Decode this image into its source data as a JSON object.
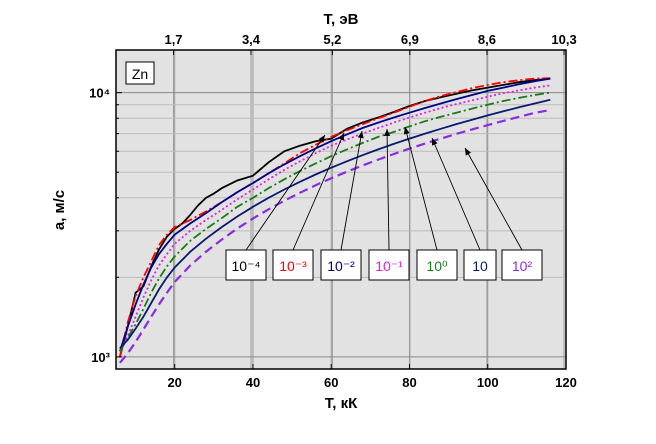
{
  "chart_data": {
    "type": "line",
    "xlabel": "T, кК",
    "ylabel": "a, м/с",
    "x2label": "T, эВ",
    "xlim": [
      5,
      120
    ],
    "ylim": [
      900,
      14500
    ],
    "yscale": "log",
    "grid": true,
    "x_ticks": [
      20,
      40,
      60,
      80,
      100,
      120
    ],
    "x_tick_labels": [
      "20",
      "40",
      "60",
      "80",
      "100",
      "120"
    ],
    "x2_ticks": [
      19.7,
      39.5,
      60.3,
      80.1,
      99.8,
      119.5
    ],
    "x2_tick_labels": [
      "1,7",
      "3,4",
      "5,2",
      "6,9",
      "8,6",
      "10,3"
    ],
    "y_ticks": [
      1000,
      10000
    ],
    "y_tick_labels": [
      "10³",
      "10⁴"
    ],
    "box_label": "Zn",
    "series": [
      {
        "name": "10⁻⁴",
        "color": "#000000",
        "dash": "solid",
        "x": [
          6,
          8,
          10,
          12,
          14,
          16,
          18,
          20,
          22,
          24,
          26,
          28,
          30,
          32,
          34,
          36,
          38,
          40,
          44,
          48,
          52,
          56,
          60,
          64,
          68,
          72,
          76,
          80,
          84,
          88,
          92,
          96,
          100,
          104,
          108,
          112,
          116
        ],
        "y": [
          1000,
          1300,
          1750,
          1850,
          2200,
          2550,
          2850,
          3050,
          3200,
          3450,
          3750,
          4000,
          4150,
          4350,
          4500,
          4650,
          4750,
          4850,
          5450,
          6000,
          6300,
          6550,
          6700,
          7300,
          7700,
          8050,
          8450,
          8900,
          9300,
          9600,
          9900,
          10200,
          10450,
          10700,
          10950,
          11150,
          11300
        ]
      },
      {
        "name": "10⁻³",
        "color": "#ff0000",
        "dash": "dashdot",
        "x": [
          6,
          8,
          10,
          12,
          14,
          16,
          18,
          20,
          24,
          28,
          32,
          36,
          40,
          44,
          48,
          52,
          56,
          60,
          64,
          68,
          72,
          76,
          80,
          84,
          88,
          92,
          96,
          100,
          104,
          108,
          112,
          116
        ],
        "y": [
          1000,
          1350,
          1700,
          2000,
          2300,
          2650,
          2900,
          3100,
          3300,
          3550,
          3850,
          4200,
          4550,
          4950,
          5400,
          5900,
          6350,
          6800,
          7200,
          7600,
          8000,
          8400,
          8850,
          9300,
          9700,
          10050,
          10400,
          10700,
          10950,
          11150,
          11300,
          11350
        ]
      },
      {
        "name": "10⁻²",
        "color": "#00008b",
        "dash": "solid",
        "x": [
          6,
          8,
          10,
          12,
          14,
          16,
          18,
          20,
          24,
          28,
          32,
          36,
          40,
          44,
          48,
          52,
          56,
          60,
          64,
          68,
          72,
          76,
          80,
          84,
          88,
          92,
          96,
          100,
          104,
          108,
          112,
          116
        ],
        "y": [
          1050,
          1300,
          1580,
          1880,
          2180,
          2450,
          2680,
          2900,
          3200,
          3500,
          3850,
          4200,
          4550,
          4950,
          5350,
          5750,
          6150,
          6550,
          6950,
          7350,
          7700,
          8050,
          8400,
          8750,
          9100,
          9450,
          9800,
          10150,
          10450,
          10750,
          11050,
          11300
        ]
      },
      {
        "name": "10⁻¹",
        "color": "#e020e0",
        "dash": "dot",
        "x": [
          6,
          8,
          10,
          12,
          14,
          16,
          18,
          20,
          24,
          28,
          32,
          36,
          40,
          44,
          48,
          52,
          56,
          60,
          64,
          68,
          72,
          76,
          80,
          84,
          88,
          92,
          96,
          100,
          104,
          108,
          112,
          116
        ],
        "y": [
          1050,
          1200,
          1420,
          1680,
          1950,
          2220,
          2450,
          2680,
          3000,
          3300,
          3600,
          3950,
          4300,
          4700,
          5100,
          5500,
          5900,
          6300,
          6650,
          7000,
          7350,
          7700,
          8050,
          8400,
          8750,
          9050,
          9350,
          9650,
          9950,
          10200,
          10450,
          10650
        ]
      },
      {
        "name": "10⁰",
        "color": "#1a7a1a",
        "dash": "dashdot",
        "x": [
          6,
          8,
          10,
          12,
          14,
          16,
          18,
          20,
          24,
          28,
          32,
          36,
          40,
          44,
          48,
          52,
          56,
          60,
          64,
          68,
          72,
          76,
          80,
          84,
          88,
          92,
          96,
          100,
          104,
          108,
          112,
          116
        ],
        "y": [
          1050,
          1180,
          1330,
          1520,
          1750,
          1980,
          2200,
          2400,
          2750,
          3050,
          3350,
          3700,
          4000,
          4350,
          4700,
          5050,
          5400,
          5750,
          6100,
          6450,
          6800,
          7100,
          7450,
          7800,
          8100,
          8400,
          8700,
          9000,
          9300,
          9550,
          9800,
          10000
        ]
      },
      {
        "name": "10",
        "color": "#0a1a6e",
        "dash": "solid",
        "x": [
          6,
          8,
          10,
          12,
          14,
          16,
          18,
          20,
          24,
          28,
          32,
          36,
          40,
          44,
          48,
          52,
          56,
          60,
          64,
          68,
          72,
          76,
          80,
          84,
          88,
          92,
          96,
          100,
          104,
          108,
          112,
          116
        ],
        "y": [
          1080,
          1160,
          1280,
          1420,
          1600,
          1800,
          2000,
          2180,
          2500,
          2800,
          3100,
          3400,
          3700,
          4000,
          4300,
          4600,
          4900,
          5200,
          5500,
          5800,
          6100,
          6400,
          6700,
          7000,
          7300,
          7600,
          7900,
          8200,
          8500,
          8800,
          9100,
          9400
        ]
      },
      {
        "name": "10²",
        "color": "#8a2be2",
        "dash": "dash",
        "x": [
          6,
          8,
          10,
          12,
          14,
          16,
          18,
          20,
          24,
          28,
          32,
          36,
          40,
          44,
          48,
          52,
          56,
          60,
          64,
          68,
          72,
          76,
          80,
          84,
          88,
          92,
          96,
          100,
          104,
          108,
          112,
          116
        ],
        "y": [
          950,
          1030,
          1140,
          1270,
          1420,
          1580,
          1750,
          1920,
          2220,
          2500,
          2780,
          3060,
          3340,
          3620,
          3900,
          4180,
          4460,
          4740,
          5020,
          5300,
          5580,
          5860,
          6140,
          6420,
          6700,
          6980,
          7260,
          7540,
          7820,
          8100,
          8380,
          8600
        ]
      }
    ]
  }
}
